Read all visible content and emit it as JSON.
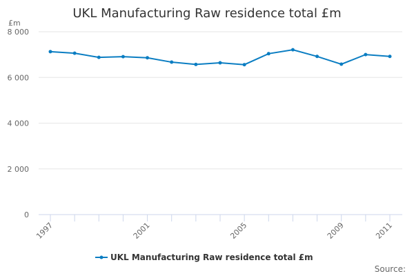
{
  "chart_data": {
    "type": "line",
    "title": "UKL Manufacturing Raw residence total £m",
    "ylabel": "£m",
    "xlabel": "",
    "x": [
      1997,
      1998,
      1999,
      2000,
      2001,
      2002,
      2003,
      2004,
      2005,
      2006,
      2007,
      2008,
      2009,
      2010,
      2011
    ],
    "series": [
      {
        "name": "UKL Manufacturing Raw residence total £m",
        "values": [
          7130,
          7060,
          6880,
          6910,
          6860,
          6670,
          6570,
          6640,
          6560,
          7040,
          7210,
          6920,
          6580,
          7000,
          6920
        ],
        "color": "#0a7dc2"
      }
    ],
    "ylim": [
      0,
      8000
    ],
    "yticks": [
      "0",
      "2 000",
      "4 000",
      "6 000",
      "8 000"
    ],
    "xticks": [
      "1997",
      "2001",
      "2005",
      "2009",
      "2011"
    ],
    "grid": true,
    "legend": "bottom",
    "source_label": "Source:"
  }
}
